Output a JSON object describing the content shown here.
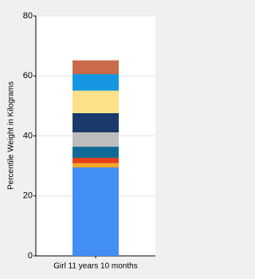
{
  "chart_data": {
    "type": "stacked-bar",
    "y_label": "Percentile Weight in Kilograms",
    "categories": [
      "Girl 11 years 10 months"
    ],
    "series": [
      {
        "color": "#428ef4",
        "values": [
          29.5
        ]
      },
      {
        "color": "#f5a623",
        "values": [
          1.4
        ]
      },
      {
        "color": "#e2401a",
        "values": [
          1.8
        ]
      },
      {
        "color": "#0f6b96",
        "values": [
          3.7
        ]
      },
      {
        "color": "#bdbdbd",
        "values": [
          4.8
        ]
      },
      {
        "color": "#1b3a6b",
        "values": [
          6.4
        ]
      },
      {
        "color": "#fde08a",
        "values": [
          7.5
        ]
      },
      {
        "color": "#1497e0",
        "values": [
          5.5
        ]
      },
      {
        "color": "#c96b4b",
        "values": [
          4.6
        ]
      }
    ],
    "ylim": [
      0,
      80
    ],
    "yticks": [
      0,
      20,
      40,
      60,
      80
    ],
    "grid": true
  }
}
